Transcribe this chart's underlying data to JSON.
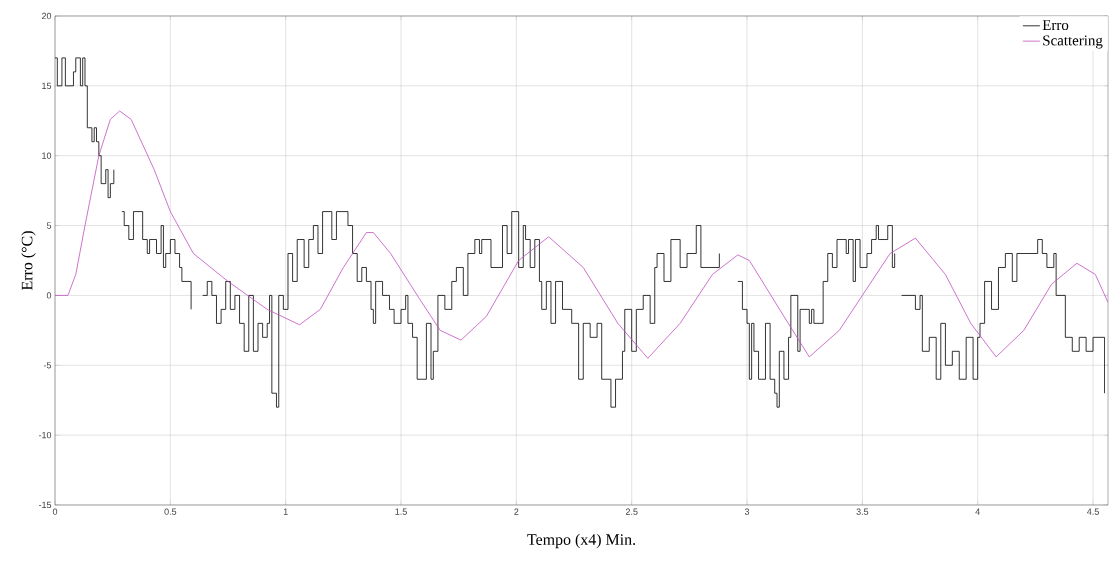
{
  "chart_data": {
    "type": "line",
    "xlabel": "Tempo (x4) Min.",
    "ylabel": "Erro (°C)",
    "xlim": [
      0,
      4.565
    ],
    "ylim": [
      -15,
      20
    ],
    "xticks": [
      0,
      0.5,
      1,
      1.5,
      2,
      2.5,
      3,
      3.5,
      4,
      4.5
    ],
    "yticks": [
      -15,
      -10,
      -5,
      0,
      5,
      10,
      15,
      20
    ],
    "grid": true,
    "legend": "top right",
    "marker": "none",
    "series": [
      {
        "name": "Erro",
        "type": "step",
        "color": "#000000",
        "x": [
          0,
          0.01,
          0.03,
          0.045,
          0.08,
          0.09,
          0.11,
          0.12,
          0.13,
          0.14,
          0.16,
          0.17,
          0.18,
          0.19,
          0.2,
          0.22,
          0.23,
          0.24,
          0.255,
          0.27,
          0.29,
          0.3,
          0.32,
          0.34,
          0.38,
          0.4,
          0.41,
          0.44,
          0.46,
          0.47,
          0.48,
          0.5,
          0.52,
          0.54,
          0.55,
          0.58,
          0.59,
          0.6,
          0.64,
          0.66,
          0.68,
          0.7,
          0.72,
          0.74,
          0.76,
          0.78,
          0.8,
          0.82,
          0.84,
          0.86,
          0.88,
          0.9,
          0.92,
          0.93,
          0.94,
          0.96,
          0.97,
          0.99,
          1.01,
          1.03,
          1.05,
          1.08,
          1.1,
          1.12,
          1.14,
          1.16,
          1.2,
          1.22,
          1.25,
          1.27,
          1.29,
          1.31,
          1.33,
          1.35,
          1.37,
          1.38,
          1.39,
          1.42,
          1.45,
          1.47,
          1.5,
          1.52,
          1.53,
          1.55,
          1.57,
          1.61,
          1.63,
          1.64,
          1.66,
          1.69,
          1.72,
          1.74,
          1.77,
          1.79,
          1.82,
          1.84,
          1.85,
          1.89,
          1.92,
          1.94,
          1.96,
          1.98,
          2.01,
          2.03,
          2.04,
          2.06,
          2.08,
          2.1,
          2.11,
          2.13,
          2.15,
          2.17,
          2.2,
          2.24,
          2.27,
          2.29,
          2.32,
          2.35,
          2.37,
          2.41,
          2.43,
          2.46,
          2.47,
          2.5,
          2.52,
          2.55,
          2.58,
          2.6,
          2.61,
          2.64,
          2.67,
          2.71,
          2.74,
          2.78,
          2.8,
          2.84,
          2.88,
          2.9,
          2.96,
          2.98,
          3.0,
          3.01,
          3.02,
          3.03,
          3.05,
          3.08,
          3.1,
          3.12,
          3.13,
          3.14,
          3.16,
          3.18,
          3.19,
          3.22,
          3.23,
          3.27,
          3.28,
          3.29,
          3.33,
          3.35,
          3.37,
          3.39,
          3.43,
          3.44,
          3.46,
          3.47,
          3.49,
          3.52,
          3.54,
          3.56,
          3.57,
          3.61,
          3.63,
          3.64,
          3.65,
          3.67,
          3.73,
          3.75,
          3.76,
          3.79,
          3.82,
          3.84,
          3.86,
          3.89,
          3.92,
          3.95,
          3.98,
          4.0,
          4.01,
          4.03,
          4.06,
          4.09,
          4.12,
          4.15,
          4.17,
          4.2,
          4.26,
          4.28,
          4.3,
          4.33,
          4.34,
          4.38,
          4.41,
          4.44,
          4.47,
          4.5,
          4.53,
          4.55
        ],
        "values": [
          17,
          15,
          17,
          15,
          16,
          17,
          15,
          17,
          15,
          12,
          11,
          12,
          11,
          10,
          8,
          9,
          7,
          8,
          9,
          null,
          6,
          5,
          4,
          6,
          4,
          3,
          4,
          3,
          5,
          2,
          3,
          4,
          3,
          2,
          1,
          1,
          -1,
          null,
          0,
          1,
          0,
          -2,
          -1,
          1,
          -1,
          0,
          -2,
          -4,
          0,
          -4,
          -2,
          -3,
          -2,
          0,
          -7,
          -8,
          0,
          -1,
          3,
          1,
          4,
          2,
          4,
          5,
          3,
          6,
          4,
          6,
          6,
          5,
          3,
          1,
          2,
          1,
          -1,
          -2,
          1,
          0,
          -1,
          -2,
          -1,
          0,
          -2,
          -3,
          -6,
          -2,
          -6,
          -4,
          0,
          -1,
          1,
          2,
          0,
          3,
          4,
          3,
          4,
          2,
          2,
          5,
          3,
          6,
          2,
          5,
          4,
          2,
          4,
          1,
          -1,
          1,
          -2,
          1,
          -1,
          -2,
          -6,
          -2,
          -3,
          -2,
          -6,
          -8,
          -6,
          -4,
          -1,
          -4,
          -1,
          0,
          -2,
          2,
          3,
          1,
          4,
          2,
          3,
          5,
          2,
          2,
          3,
          null,
          1,
          -1,
          -2,
          -6,
          -2,
          -4,
          -6,
          -2,
          -6,
          -7,
          -8,
          -4,
          -6,
          -3,
          0,
          -4,
          -1,
          -2,
          -1,
          -2,
          1,
          3,
          2,
          4,
          3,
          4,
          1,
          4,
          2,
          3,
          4,
          5,
          4,
          5,
          2,
          3,
          null,
          0,
          -1,
          0,
          -4,
          -3,
          -6,
          -2,
          -5,
          -4,
          -6,
          -3,
          -6,
          -3,
          -2,
          1,
          -1,
          2,
          3,
          1,
          3,
          3,
          4,
          3,
          2,
          3,
          0,
          -3,
          -4,
          -3,
          -4,
          -3,
          -3,
          -7
        ]
      },
      {
        "name": "Scattering",
        "type": "line",
        "color": "#c050c0",
        "x": [
          0,
          0.056,
          0.09,
          0.13,
          0.19,
          0.24,
          0.28,
          0.33,
          0.43,
          0.5,
          0.6,
          0.75,
          0.92,
          1.06,
          1.15,
          1.25,
          1.35,
          1.38,
          1.455,
          1.59,
          1.67,
          1.76,
          1.87,
          2.01,
          2.14,
          2.29,
          2.44,
          2.57,
          2.71,
          2.85,
          2.96,
          3.01,
          3.16,
          3.27,
          3.4,
          3.5,
          3.62,
          3.73,
          3.86,
          3.97,
          4.08,
          4.2,
          4.32,
          4.43,
          4.51,
          4.565
        ],
        "values": [
          0,
          0,
          1.5,
          5,
          10,
          12.6,
          13.2,
          12.6,
          9,
          6,
          3,
          1,
          -1,
          -2.1,
          -1,
          2,
          4.5,
          4.5,
          3,
          -0.5,
          -2.5,
          -3.2,
          -1.5,
          2.5,
          4.2,
          2,
          -2,
          -4.5,
          -2,
          1.5,
          2.9,
          2.5,
          -1.5,
          -4.4,
          -2.5,
          0,
          3,
          4.1,
          1.5,
          -2,
          -4.4,
          -2.5,
          0.8,
          2.3,
          1.5,
          -0.5
        ]
      }
    ]
  }
}
